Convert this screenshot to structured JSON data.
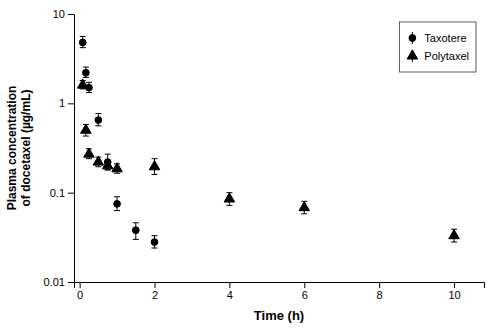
{
  "chart_data": {
    "type": "scatter",
    "x_label": "Time (h)",
    "y_label": "Plasma concentration\nof docetaxel (µg/mL)",
    "log": "y",
    "grid": false,
    "legend": "upper right",
    "xlim": [
      -0.15,
      10.8
    ],
    "ylim": [
      0.01,
      10
    ],
    "xticks": [
      0,
      2,
      4,
      6,
      8,
      10
    ],
    "yticks": [
      0.01,
      0.1,
      1,
      10
    ],
    "series": [
      {
        "name": "Taxotere",
        "color": "#000000",
        "marker": "circle",
        "x": [
          0.083,
          0.167,
          0.25,
          0.5,
          0.75,
          1.0,
          1.5,
          2.0
        ],
        "values": [
          4.8,
          2.2,
          1.5,
          0.65,
          0.22,
          0.075,
          0.038,
          0.028
        ],
        "error_low": [
          0.6,
          0.25,
          0.18,
          0.09,
          0.04,
          0.012,
          0.008,
          0.004
        ],
        "error_high": [
          0.8,
          0.35,
          0.22,
          0.12,
          0.05,
          0.015,
          0.008,
          0.005
        ]
      },
      {
        "name": "Polytaxel",
        "color": "#000000",
        "marker": "triangle",
        "x": [
          0.083,
          0.167,
          0.25,
          0.5,
          0.75,
          1.0,
          2.0,
          4.0,
          6.0,
          10.0
        ],
        "values": [
          1.6,
          0.5,
          0.27,
          0.22,
          0.2,
          0.185,
          0.195,
          0.085,
          0.068,
          0.033
        ],
        "error_low": [
          0.15,
          0.07,
          0.03,
          0.025,
          0.02,
          0.02,
          0.035,
          0.013,
          0.01,
          0.005
        ],
        "error_high": [
          0.2,
          0.08,
          0.04,
          0.03,
          0.025,
          0.025,
          0.045,
          0.015,
          0.012,
          0.006
        ]
      }
    ]
  }
}
